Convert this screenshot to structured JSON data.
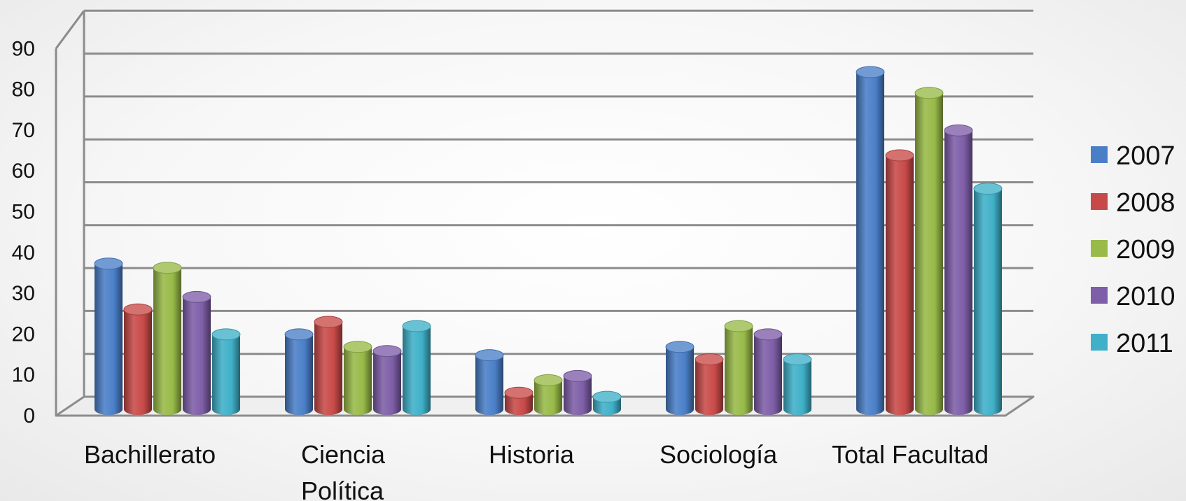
{
  "chart_data": {
    "type": "bar",
    "style": "3d-cylinder",
    "categories": [
      [
        "Bachillerato"
      ],
      [
        "Ciencia",
        "Política"
      ],
      [
        "Historia"
      ],
      [
        "Sociología"
      ],
      [
        "Total Facultad"
      ]
    ],
    "series": [
      {
        "name": "2007",
        "color": "#4a7fc8",
        "values": [
          35,
          18,
          13,
          15,
          81
        ]
      },
      {
        "name": "2008",
        "color": "#c84a48",
        "values": [
          24,
          21,
          4,
          12,
          61
        ]
      },
      {
        "name": "2009",
        "color": "#98ba48",
        "values": [
          34,
          15,
          7,
          20,
          76
        ]
      },
      {
        "name": "2010",
        "color": "#7e5ea8",
        "values": [
          27,
          14,
          8,
          18,
          67
        ]
      },
      {
        "name": "2011",
        "color": "#3fb0c8",
        "values": [
          18,
          20,
          3,
          12,
          53
        ]
      }
    ],
    "y_ticks": [
      "0",
      "10",
      "20",
      "30",
      "40",
      "50",
      "60",
      "70",
      "80",
      "90"
    ],
    "ylim": [
      0,
      90
    ],
    "grid": true,
    "legend_position": "right"
  }
}
